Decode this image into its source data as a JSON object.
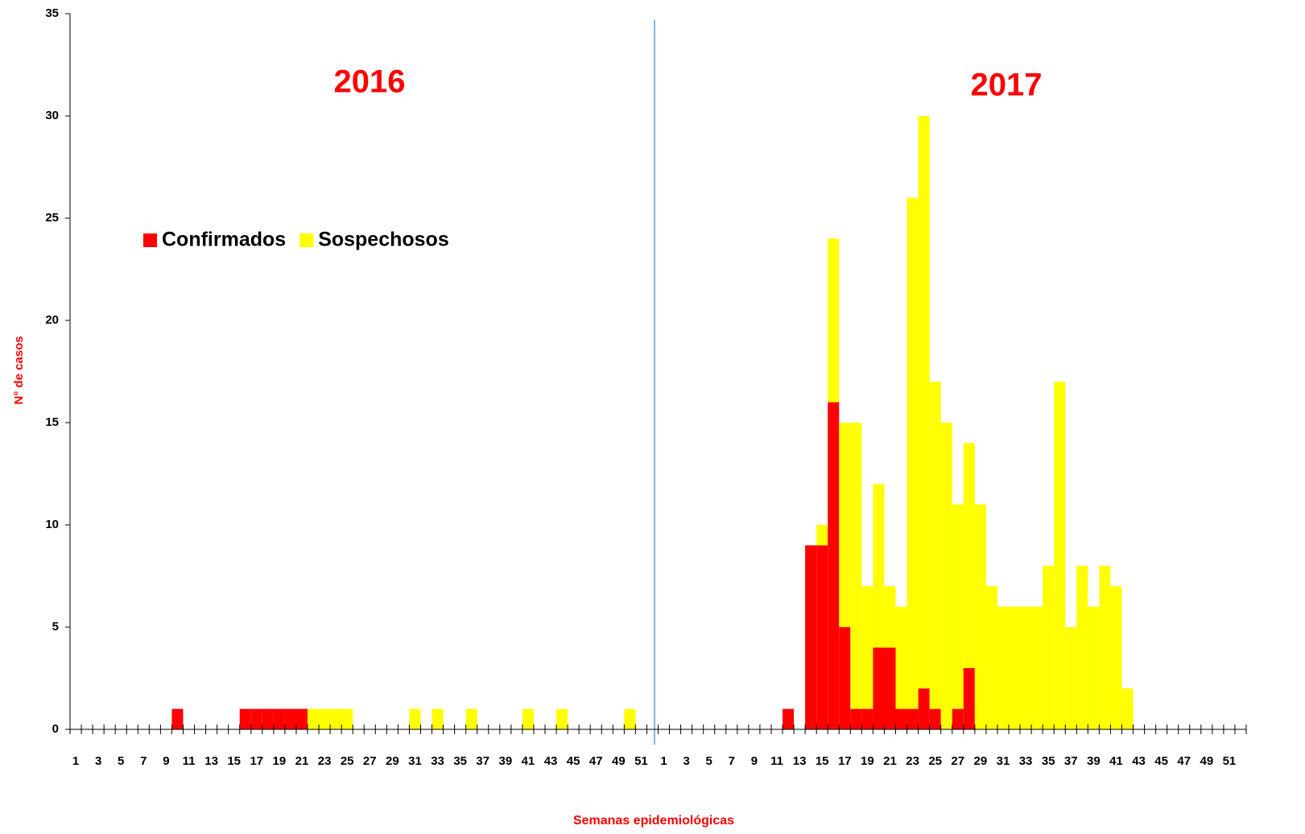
{
  "chart_data": {
    "type": "stacked-bar",
    "x_label": "Semanas epidemiológicas",
    "y_label": "N° de casos",
    "annotations": [
      "2016",
      "2017"
    ],
    "categories": [
      "1",
      null,
      "3",
      null,
      "5",
      null,
      "7",
      null,
      "9",
      null,
      "11",
      null,
      "13",
      null,
      "15",
      null,
      "17",
      null,
      "19",
      null,
      "21",
      null,
      "23",
      null,
      "25",
      null,
      "27",
      null,
      "29",
      null,
      "31",
      null,
      "33",
      null,
      "35",
      null,
      "37",
      null,
      "39",
      null,
      "41",
      null,
      "43",
      null,
      "45",
      null,
      "47",
      null,
      "49",
      null,
      "51",
      null,
      "1",
      null,
      "3",
      null,
      "5",
      null,
      "7",
      null,
      "9",
      null,
      "11",
      null,
      "13",
      null,
      "15",
      null,
      "17",
      null,
      "19",
      null,
      "21",
      null,
      "23",
      null,
      "25",
      null,
      "27",
      null,
      "29",
      null,
      "31",
      null,
      "33",
      null,
      "35",
      null,
      "37",
      null,
      "39",
      null,
      "41",
      null,
      "43",
      null,
      "45",
      null,
      "47",
      null,
      "49",
      null,
      "51",
      null
    ],
    "series": [
      {
        "name": "Confirmados",
        "color": "#ff0000",
        "values": [
          0,
          0,
          0,
          0,
          0,
          0,
          0,
          0,
          0,
          1,
          0,
          0,
          0,
          0,
          0,
          1,
          1,
          1,
          1,
          1,
          1,
          0,
          0,
          0,
          0,
          0,
          0,
          0,
          0,
          0,
          0,
          0,
          0,
          0,
          0,
          0,
          0,
          0,
          0,
          0,
          0,
          0,
          0,
          0,
          0,
          0,
          0,
          0,
          0,
          0,
          0,
          0,
          0,
          0,
          0,
          0,
          0,
          0,
          0,
          0,
          0,
          0,
          0,
          1,
          0,
          9,
          9,
          16,
          5,
          1,
          1,
          4,
          4,
          1,
          1,
          2,
          1,
          0,
          1,
          3,
          0,
          0,
          0,
          0,
          0,
          0,
          0,
          0,
          0,
          0,
          0,
          0,
          0,
          0,
          0,
          0,
          0,
          0,
          0,
          0,
          0,
          0,
          0,
          0
        ]
      },
      {
        "name": "Sospechosos",
        "color": "#ffff00",
        "values": [
          0,
          0,
          0,
          0,
          0,
          0,
          0,
          0,
          0,
          0,
          0,
          0,
          0,
          0,
          0,
          0,
          0,
          0,
          0,
          0,
          0,
          1,
          1,
          1,
          1,
          0,
          0,
          0,
          0,
          0,
          1,
          0,
          1,
          0,
          0,
          1,
          0,
          0,
          0,
          0,
          1,
          0,
          0,
          1,
          0,
          0,
          0,
          0,
          0,
          1,
          0,
          0,
          0,
          0,
          0,
          0,
          0,
          0,
          0,
          0,
          0,
          0,
          0,
          0,
          0,
          0,
          1,
          8,
          10,
          14,
          6,
          8,
          3,
          5,
          25,
          28,
          16,
          15,
          10,
          11,
          11,
          7,
          6,
          6,
          6,
          6,
          8,
          17,
          5,
          8,
          6,
          8,
          7,
          2,
          0,
          0,
          0,
          0,
          0,
          0,
          0,
          0,
          0,
          0
        ]
      }
    ],
    "ylim": [
      0,
      35
    ],
    "yticks": [
      0,
      5,
      10,
      15,
      20,
      25,
      30,
      35
    ]
  }
}
